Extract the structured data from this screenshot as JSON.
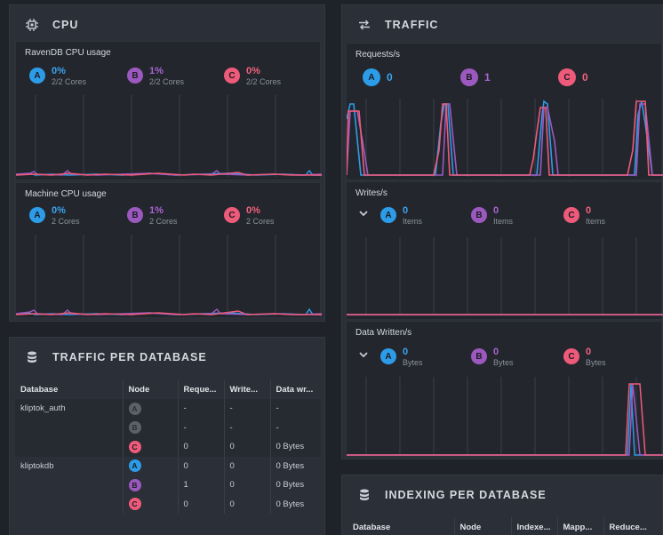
{
  "cpu": {
    "title": "CPU",
    "ravendb": {
      "title": "RavenDB CPU usage",
      "nodes": [
        {
          "tag": "A",
          "value": "0%",
          "unit": "2/2 Cores"
        },
        {
          "tag": "B",
          "value": "1%",
          "unit": "2/2 Cores"
        },
        {
          "tag": "C",
          "value": "0%",
          "unit": "2/2 Cores"
        }
      ]
    },
    "machine": {
      "title": "Machine CPU usage",
      "nodes": [
        {
          "tag": "A",
          "value": "0%",
          "unit": "2 Cores"
        },
        {
          "tag": "B",
          "value": "1%",
          "unit": "2 Cores"
        },
        {
          "tag": "C",
          "value": "0%",
          "unit": "2 Cores"
        }
      ]
    }
  },
  "traffic": {
    "title": "TRAFFIC",
    "requests": {
      "title": "Requests/s",
      "nodes": [
        {
          "tag": "A",
          "value": "0"
        },
        {
          "tag": "B",
          "value": "1"
        },
        {
          "tag": "C",
          "value": "0"
        }
      ]
    },
    "writes": {
      "title": "Writes/s",
      "nodes": [
        {
          "tag": "A",
          "value": "0",
          "unit": "Items"
        },
        {
          "tag": "B",
          "value": "0",
          "unit": "Items"
        },
        {
          "tag": "C",
          "value": "0",
          "unit": "Items"
        }
      ]
    },
    "data_written": {
      "title": "Data Written/s",
      "nodes": [
        {
          "tag": "A",
          "value": "0",
          "unit": "Bytes"
        },
        {
          "tag": "B",
          "value": "0",
          "unit": "Bytes"
        },
        {
          "tag": "C",
          "value": "0",
          "unit": "Bytes"
        }
      ]
    }
  },
  "traffic_per_db": {
    "title": "TRAFFIC PER DATABASE",
    "columns": [
      "Database",
      "Node",
      "Reque...",
      "Write...",
      "Data wr..."
    ],
    "rows": [
      {
        "db": "kliptok_auth",
        "node": "A",
        "node_on": false,
        "req": "-",
        "writes": "-",
        "data": "-"
      },
      {
        "db": "",
        "node": "B",
        "node_on": false,
        "req": "-",
        "writes": "-",
        "data": "-"
      },
      {
        "db": "",
        "node": "C",
        "node_on": true,
        "req": "0",
        "writes": "0",
        "data": "0 Bytes"
      },
      {
        "db": "kliptokdb",
        "node": "A",
        "node_on": true,
        "req": "0",
        "writes": "0",
        "data": "0 Bytes"
      },
      {
        "db": "",
        "node": "B",
        "node_on": true,
        "req": "1",
        "writes": "0",
        "data": "0 Bytes"
      },
      {
        "db": "",
        "node": "C",
        "node_on": true,
        "req": "0",
        "writes": "0",
        "data": "0 Bytes"
      }
    ]
  },
  "indexing_per_db": {
    "title": "INDEXING PER DATABASE",
    "columns": [
      "Database",
      "Node",
      "Indexe...",
      "Mapp...",
      "Reduce..."
    ]
  },
  "colors": {
    "A": "#2d9ce8",
    "B": "#9b59c0",
    "C": "#ee5a7a"
  }
}
